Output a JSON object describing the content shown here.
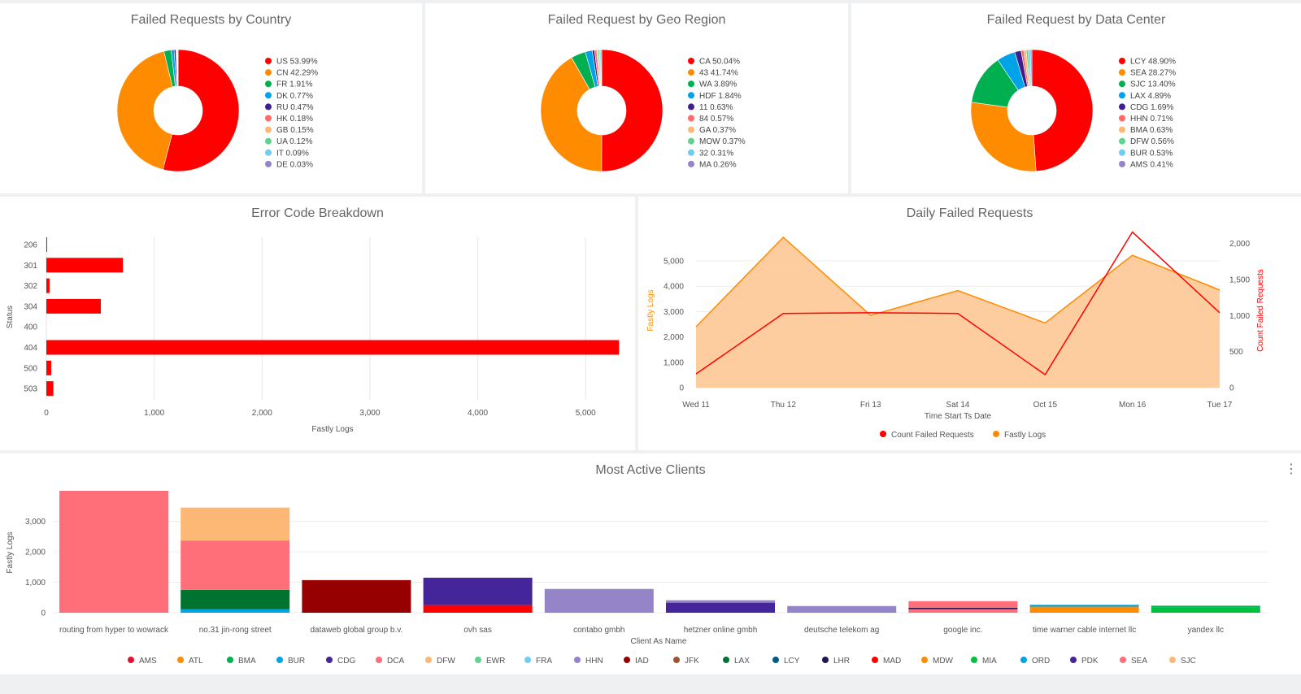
{
  "dashboard": {
    "pies": [
      {
        "title": "Failed Requests by Country",
        "slices": [
          {
            "label": "US 53.99%",
            "value": 53.99,
            "color": "#ff0000"
          },
          {
            "label": "CN 42.29%",
            "value": 42.29,
            "color": "#ff8c00"
          },
          {
            "label": "FR 1.91%",
            "value": 1.91,
            "color": "#00b050"
          },
          {
            "label": "DK 0.77%",
            "value": 0.77,
            "color": "#00a2e8"
          },
          {
            "label": "RU 0.47%",
            "value": 0.47,
            "color": "#3f1f8c"
          },
          {
            "label": "HK 0.18%",
            "value": 0.18,
            "color": "#ff6b6b"
          },
          {
            "label": "GB 0.15%",
            "value": 0.15,
            "color": "#fdb876"
          },
          {
            "label": "UA 0.12%",
            "value": 0.12,
            "color": "#5fd38d"
          },
          {
            "label": "IT 0.09%",
            "value": 0.09,
            "color": "#6fcdf3"
          },
          {
            "label": "DE 0.03%",
            "value": 0.03,
            "color": "#9585c8"
          }
        ]
      },
      {
        "title": "Failed Request by Geo Region",
        "slices": [
          {
            "label": "CA 50.04%",
            "value": 50.04,
            "color": "#ff0000"
          },
          {
            "label": "43 41.74%",
            "value": 41.74,
            "color": "#ff8c00"
          },
          {
            "label": "WA 3.89%",
            "value": 3.89,
            "color": "#00b050"
          },
          {
            "label": "HDF 1.84%",
            "value": 1.84,
            "color": "#00a2e8"
          },
          {
            "label": "11 0.63%",
            "value": 0.63,
            "color": "#3f1f8c"
          },
          {
            "label": "84 0.57%",
            "value": 0.57,
            "color": "#ff6b6b"
          },
          {
            "label": "GA 0.37%",
            "value": 0.37,
            "color": "#fdb876"
          },
          {
            "label": "MOW 0.37%",
            "value": 0.37,
            "color": "#5fd38d"
          },
          {
            "label": "32 0.31%",
            "value": 0.31,
            "color": "#6fcdf3"
          },
          {
            "label": "MA 0.26%",
            "value": 0.26,
            "color": "#9585c8"
          }
        ]
      },
      {
        "title": "Failed Request by Data Center",
        "slices": [
          {
            "label": "LCY 48.90%",
            "value": 48.9,
            "color": "#ff0000"
          },
          {
            "label": "SEA 28.27%",
            "value": 28.27,
            "color": "#ff8c00"
          },
          {
            "label": "SJC 13.40%",
            "value": 13.4,
            "color": "#00b050"
          },
          {
            "label": "LAX 4.89%",
            "value": 4.89,
            "color": "#00a2e8"
          },
          {
            "label": "CDG 1.69%",
            "value": 1.69,
            "color": "#3f1f8c"
          },
          {
            "label": "HHN 0.71%",
            "value": 0.71,
            "color": "#ff6b6b"
          },
          {
            "label": "BMA 0.63%",
            "value": 0.63,
            "color": "#fdb876"
          },
          {
            "label": "DFW 0.56%",
            "value": 0.56,
            "color": "#5fd38d"
          },
          {
            "label": "BUR 0.53%",
            "value": 0.53,
            "color": "#6fcdf3"
          },
          {
            "label": "AMS 0.41%",
            "value": 0.41,
            "color": "#9585c8"
          }
        ]
      }
    ],
    "errors": {
      "title": "Error Code Breakdown",
      "ylabel": "Status",
      "xlabel": "Fastly Logs",
      "xticks": [
        {
          "value": 0,
          "label": "0"
        },
        {
          "value": 1000,
          "label": "1,000"
        },
        {
          "value": 2000,
          "label": "2,000"
        },
        {
          "value": 3000,
          "label": "3,000"
        },
        {
          "value": 4000,
          "label": "4,000"
        },
        {
          "value": 5000,
          "label": "5,000"
        }
      ],
      "bars": [
        {
          "label": "206",
          "value": 5
        },
        {
          "label": "301",
          "value": 710
        },
        {
          "label": "302",
          "value": 30
        },
        {
          "label": "304",
          "value": 505
        },
        {
          "label": "400",
          "value": 0
        },
        {
          "label": "404",
          "value": 5310
        },
        {
          "label": "500",
          "value": 45
        },
        {
          "label": "503",
          "value": 65
        }
      ],
      "color": "#ff0000"
    },
    "daily": {
      "title": "Daily Failed Requests",
      "xtitle": "Time Start Ts Date",
      "left_label": "Fastly Logs",
      "right_label": "Count Failed Requests",
      "categories": [
        "Wed 11",
        "Thu 12",
        "Fri 13",
        "Sat 14",
        "Oct 15",
        "Mon 16",
        "Tue 17"
      ],
      "left_ticks": [
        {
          "value": 0,
          "label": "0"
        },
        {
          "value": 1000,
          "label": "1,000"
        },
        {
          "value": 2000,
          "label": "2,000"
        },
        {
          "value": 3000,
          "label": "3,000"
        },
        {
          "value": 4000,
          "label": "4,000"
        },
        {
          "value": 5000,
          "label": "5,000"
        }
      ],
      "right_ticks": [
        {
          "value": 0,
          "label": "0"
        },
        {
          "value": 500,
          "label": "500"
        },
        {
          "value": 1000,
          "label": "1,000"
        },
        {
          "value": 1500,
          "label": "1,500"
        },
        {
          "value": 2000,
          "label": "2,000"
        }
      ],
      "fastly_logs": [
        2400,
        5930,
        2850,
        3830,
        2550,
        5220,
        3850
      ],
      "count_failed": [
        190,
        1030,
        1040,
        1030,
        180,
        2160,
        1040
      ],
      "legend": [
        {
          "label": "Count Failed Requests",
          "color": "#ff0000"
        },
        {
          "label": "Fastly Logs",
          "color": "#ff8c00"
        }
      ]
    },
    "clients": {
      "title": "Most Active Clients",
      "ylabel": "Fastly Logs",
      "xlabel": "Client As Name",
      "yticks": [
        {
          "value": 0,
          "label": "0"
        },
        {
          "value": 1000,
          "label": "1,000"
        },
        {
          "value": 2000,
          "label": "2,000"
        },
        {
          "value": 3000,
          "label": "3,000"
        }
      ],
      "legend": [
        {
          "label": "AMS",
          "color": "#e8112d"
        },
        {
          "label": "ATL",
          "color": "#ff8c00"
        },
        {
          "label": "BMA",
          "color": "#00b050"
        },
        {
          "label": "BUR",
          "color": "#00a2e8"
        },
        {
          "label": "CDG",
          "color": "#44269a"
        },
        {
          "label": "DCA",
          "color": "#ff6f79"
        },
        {
          "label": "DFW",
          "color": "#fdb876"
        },
        {
          "label": "EWR",
          "color": "#5fd38d"
        },
        {
          "label": "FRA",
          "color": "#6fcdf3"
        },
        {
          "label": "HHN",
          "color": "#9585c8"
        },
        {
          "label": "IAD",
          "color": "#960000"
        },
        {
          "label": "JFK",
          "color": "#a0522d"
        },
        {
          "label": "LAX",
          "color": "#00732f"
        },
        {
          "label": "LCY",
          "color": "#005a87"
        },
        {
          "label": "LHR",
          "color": "#211554"
        },
        {
          "label": "MAD",
          "color": "#ff0000"
        },
        {
          "label": "MDW",
          "color": "#ff8c00"
        },
        {
          "label": "MIA",
          "color": "#00c040"
        },
        {
          "label": "ORD",
          "color": "#00a2e8"
        },
        {
          "label": "PDK",
          "color": "#44269a"
        },
        {
          "label": "SEA",
          "color": "#ff6f79"
        },
        {
          "label": "SJC",
          "color": "#fdb876"
        }
      ],
      "bars": [
        {
          "name": "routing from hyper to wowrack",
          "segments": [
            {
              "value": 4000,
              "color": "#ff6f79"
            }
          ]
        },
        {
          "name": "no.31 jin-rong street",
          "segments": [
            {
              "value": 120,
              "color": "#00a2e8"
            },
            {
              "value": 630,
              "color": "#00732f"
            },
            {
              "value": 1620,
              "color": "#ff6f79"
            },
            {
              "value": 1080,
              "color": "#fdb876"
            }
          ]
        },
        {
          "name": "dataweb global group b.v.",
          "segments": [
            {
              "value": 1070,
              "color": "#960000"
            }
          ]
        },
        {
          "name": "ovh sas",
          "segments": [
            {
              "value": 250,
              "color": "#ff0000"
            },
            {
              "value": 900,
              "color": "#44269a"
            }
          ]
        },
        {
          "name": "contabo gmbh",
          "segments": [
            {
              "value": 780,
              "color": "#9585c8"
            }
          ]
        },
        {
          "name": "hetzner online gmbh",
          "segments": [
            {
              "value": 330,
              "color": "#44269a"
            },
            {
              "value": 80,
              "color": "#9585c8"
            }
          ]
        },
        {
          "name": "deutsche telekom ag",
          "segments": [
            {
              "value": 220,
              "color": "#9585c8"
            }
          ]
        },
        {
          "name": "google inc.",
          "segments": [
            {
              "value": 120,
              "color": "#ff6f79"
            },
            {
              "value": 40,
              "color": "#211554"
            },
            {
              "value": 220,
              "color": "#ff6f79"
            }
          ]
        },
        {
          "name": "time warner cable internet llc",
          "segments": [
            {
              "value": 200,
              "color": "#ff8c00"
            },
            {
              "value": 60,
              "color": "#00a2e8"
            }
          ]
        },
        {
          "name": "yandex llc",
          "segments": [
            {
              "value": 170,
              "color": "#00c040"
            },
            {
              "value": 60,
              "color": "#00b050"
            }
          ]
        }
      ]
    }
  },
  "chart_data": [
    {
      "type": "pie",
      "title": "Failed Requests by Country",
      "categories": [
        "US",
        "CN",
        "FR",
        "DK",
        "RU",
        "HK",
        "GB",
        "UA",
        "IT",
        "DE"
      ],
      "values": [
        53.99,
        42.29,
        1.91,
        0.77,
        0.47,
        0.18,
        0.15,
        0.12,
        0.09,
        0.03
      ]
    },
    {
      "type": "pie",
      "title": "Failed Request by Geo Region",
      "categories": [
        "CA",
        "43",
        "WA",
        "HDF",
        "11",
        "84",
        "GA",
        "MOW",
        "32",
        "MA"
      ],
      "values": [
        50.04,
        41.74,
        3.89,
        1.84,
        0.63,
        0.57,
        0.37,
        0.37,
        0.31,
        0.26
      ]
    },
    {
      "type": "pie",
      "title": "Failed Request by Data Center",
      "categories": [
        "LCY",
        "SEA",
        "SJC",
        "LAX",
        "CDG",
        "HHN",
        "BMA",
        "DFW",
        "BUR",
        "AMS"
      ],
      "values": [
        48.9,
        28.27,
        13.4,
        4.89,
        1.69,
        0.71,
        0.63,
        0.56,
        0.53,
        0.41
      ]
    },
    {
      "type": "bar",
      "orientation": "horizontal",
      "title": "Error Code Breakdown",
      "categories": [
        "206",
        "301",
        "302",
        "304",
        "400",
        "404",
        "500",
        "503"
      ],
      "values": [
        5,
        710,
        30,
        505,
        0,
        5310,
        45,
        65
      ],
      "xlabel": "Fastly Logs",
      "ylabel": "Status",
      "xlim": [
        0,
        5400
      ]
    },
    {
      "type": "line",
      "title": "Daily Failed Requests",
      "categories": [
        "Wed 11",
        "Thu 12",
        "Fri 13",
        "Sat 14",
        "Oct 15",
        "Mon 16",
        "Tue 17"
      ],
      "series": [
        {
          "name": "Fastly Logs",
          "axis": "left",
          "style": "area",
          "values": [
            2400,
            5930,
            2850,
            3830,
            2550,
            5220,
            3850
          ]
        },
        {
          "name": "Count Failed Requests",
          "axis": "right",
          "style": "line",
          "values": [
            190,
            1030,
            1040,
            1030,
            180,
            2160,
            1040
          ]
        }
      ],
      "xlabel": "Time Start Ts Date",
      "ylabel": "Fastly Logs",
      "y2label": "Count Failed Requests",
      "ylim": [
        0,
        6000
      ],
      "y2lim": [
        0,
        2200
      ]
    },
    {
      "type": "bar",
      "stacked": true,
      "title": "Most Active Clients",
      "categories": [
        "routing from hyper to wowrack",
        "no.31 jin-rong street",
        "dataweb global group b.v.",
        "ovh sas",
        "contabo gmbh",
        "hetzner online gmbh",
        "deutsche telekom ag",
        "google inc.",
        "time warner cable internet llc",
        "yandex llc"
      ],
      "values": [
        4000,
        3450,
        1070,
        1150,
        780,
        410,
        220,
        380,
        260,
        230
      ],
      "xlabel": "Client As Name",
      "ylabel": "Fastly Logs",
      "ylim": [
        0,
        4000
      ]
    }
  ]
}
